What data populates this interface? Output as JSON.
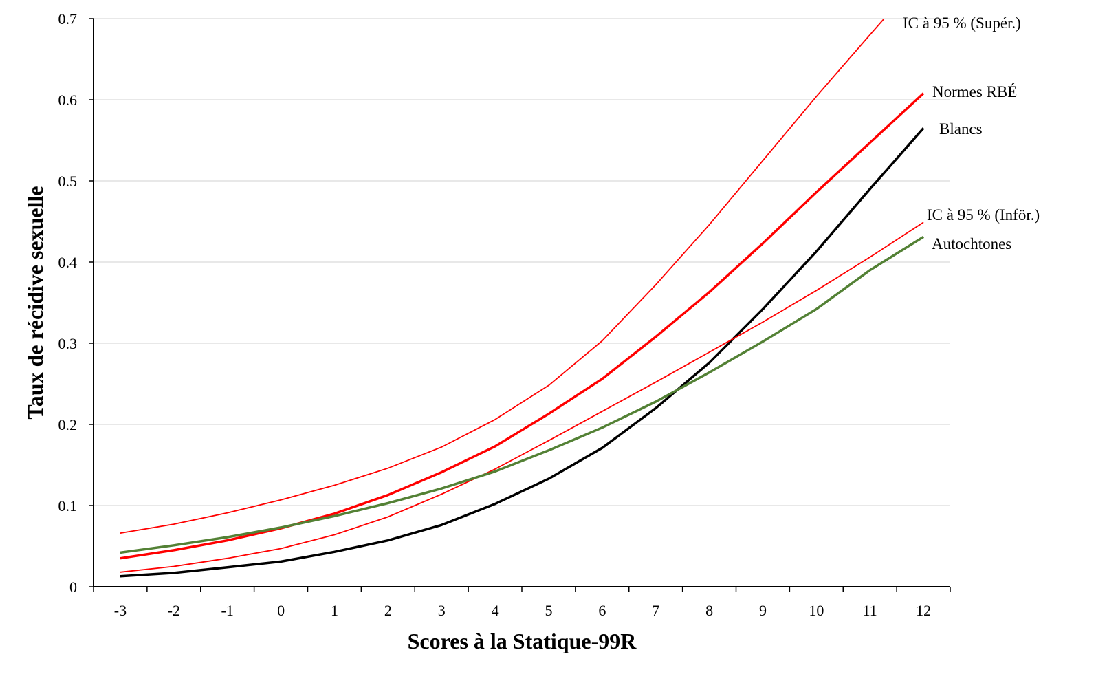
{
  "chart_data": {
    "type": "line",
    "title": "",
    "xlabel": "Scores à la Statique-99R",
    "ylabel": "Taux de récidive sexuelle",
    "x": [
      -3,
      -2,
      -1,
      0,
      1,
      2,
      3,
      4,
      5,
      6,
      7,
      8,
      9,
      10,
      11,
      12
    ],
    "xticks": [
      "-3",
      "-2",
      "-1",
      "0",
      "1",
      "2",
      "3",
      "4",
      "5",
      "6",
      "7",
      "8",
      "9",
      "10",
      "11",
      "12"
    ],
    "ylim": [
      0,
      0.7
    ],
    "yticks": [
      "0",
      "0.1",
      "0.2",
      "0.3",
      "0.4",
      "0.5",
      "0.6",
      "0.7"
    ],
    "grid": true,
    "legend": "inline labels at line ends (right)",
    "series": [
      {
        "name": "IC à 95 % (Supér.)",
        "color": "#ff0000",
        "width": "thin",
        "values": [
          0.066,
          0.077,
          0.091,
          0.107,
          0.125,
          0.146,
          0.172,
          0.206,
          0.248,
          0.303,
          0.372,
          0.446,
          0.525,
          0.604,
          0.68,
          0.755
        ]
      },
      {
        "name": "Normes RBÉ",
        "color": "#ff0000",
        "width": "thick",
        "values": [
          0.035,
          0.045,
          0.057,
          0.072,
          0.09,
          0.113,
          0.141,
          0.173,
          0.213,
          0.256,
          0.308,
          0.363,
          0.423,
          0.486,
          0.547,
          0.608
        ]
      },
      {
        "name": "Blancs",
        "color": "#000000",
        "width": "thick",
        "values": [
          0.013,
          0.017,
          0.024,
          0.031,
          0.043,
          0.057,
          0.076,
          0.102,
          0.133,
          0.171,
          0.22,
          0.276,
          0.342,
          0.413,
          0.49,
          0.565
        ]
      },
      {
        "name": "IC à 95 % (Inför.)",
        "color": "#ff0000",
        "width": "thin",
        "values": [
          0.018,
          0.025,
          0.035,
          0.047,
          0.064,
          0.086,
          0.114,
          0.145,
          0.18,
          0.216,
          0.252,
          0.289,
          0.326,
          0.365,
          0.406,
          0.449
        ]
      },
      {
        "name": "Autochtones",
        "color": "#538135",
        "width": "thick",
        "values": [
          0.042,
          0.051,
          0.061,
          0.073,
          0.087,
          0.103,
          0.121,
          0.142,
          0.168,
          0.196,
          0.228,
          0.264,
          0.302,
          0.342,
          0.39,
          0.431
        ]
      }
    ]
  }
}
